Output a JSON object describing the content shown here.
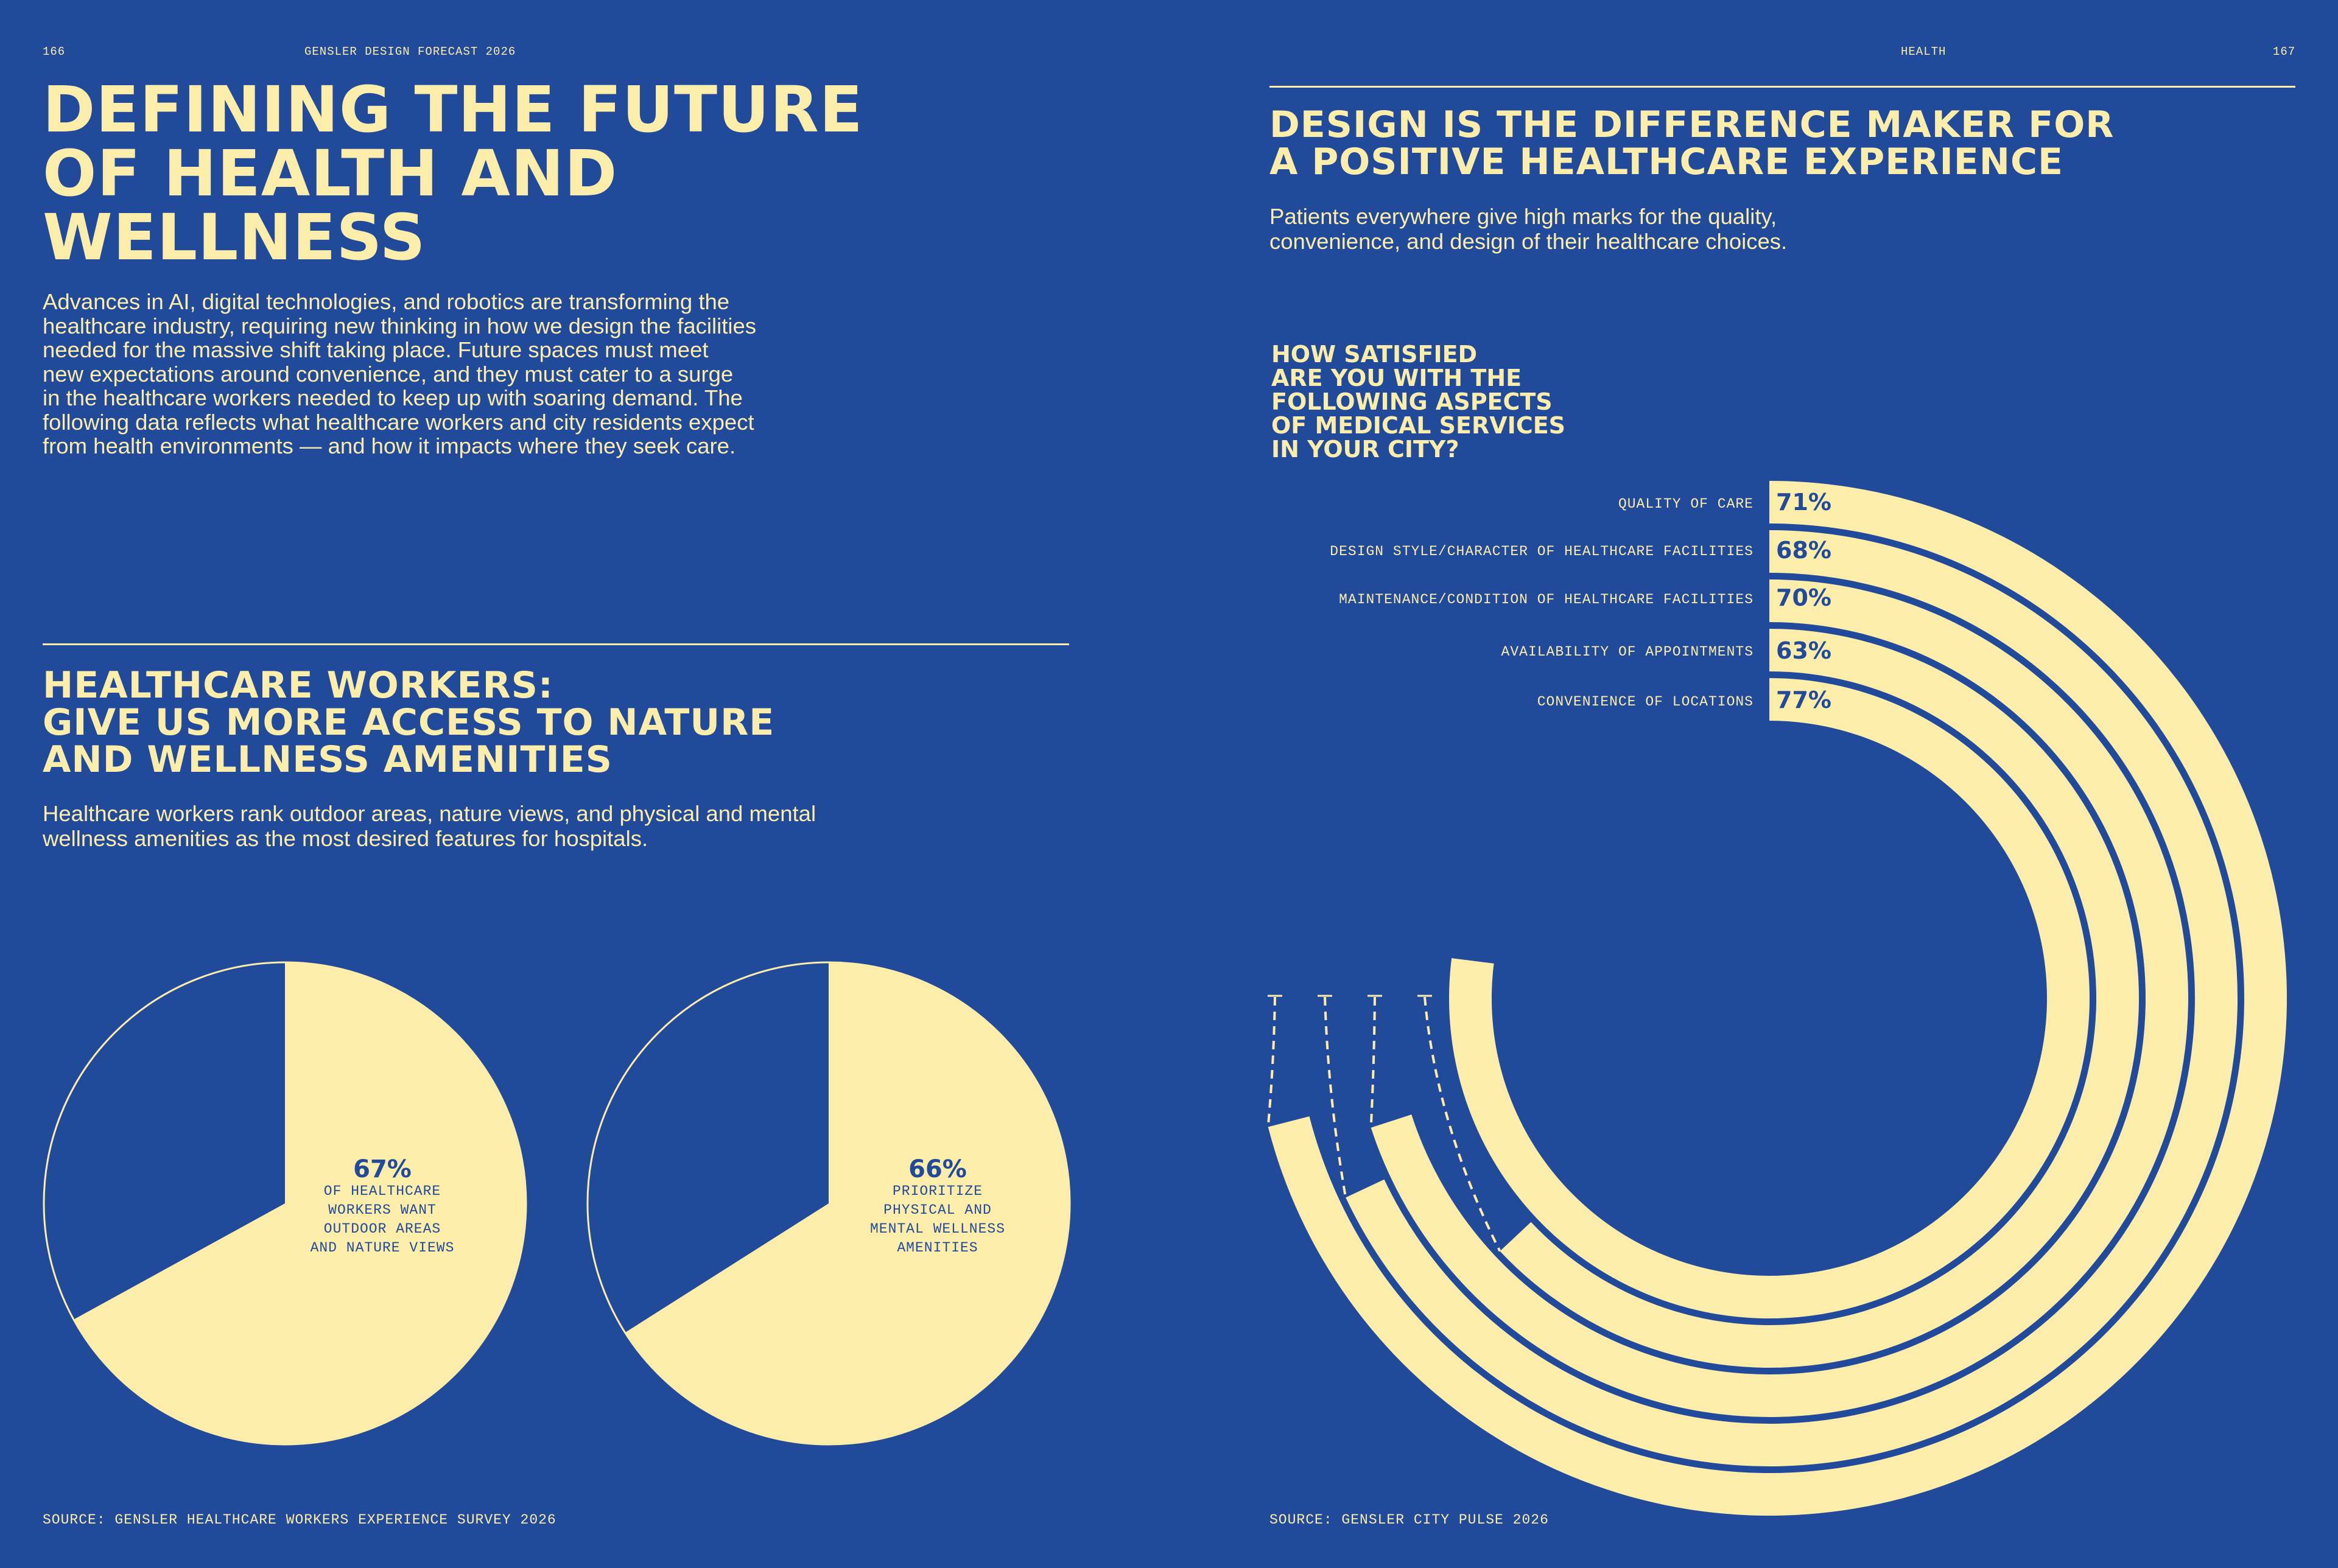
{
  "left_page": {
    "page_number": "166",
    "running_head": "GENSLER DESIGN FORECAST 2026",
    "title_lines": [
      "DEFINING THE FUTURE",
      "OF HEALTH AND",
      "WELLNESS"
    ],
    "intro_lines": [
      "Advances in AI, digital technologies, and robotics are transforming the",
      "healthcare industry, requiring new thinking in how we design the facilities",
      "needed for the massive shift taking place. Future spaces must meet",
      "new expectations around convenience, and they must cater to a surge",
      "in the healthcare workers needed to keep up with soaring demand. The",
      "following data reflects what healthcare workers and city residents expect",
      "from health environments — and how it impacts where they seek care."
    ],
    "section_title_lines": [
      "HEALTHCARE WORKERS:",
      "GIVE US MORE ACCESS TO NATURE",
      "AND WELLNESS AMENITIES"
    ],
    "section_body_lines": [
      "Healthcare workers rank outdoor areas, nature views, and physical and mental",
      "wellness amenities as the most desired features for hospitals."
    ],
    "source": "SOURCE: GENSLER HEALTHCARE WORKERS EXPERIENCE SURVEY 2026"
  },
  "right_page": {
    "running_head": "HEALTH",
    "page_number": "167",
    "title_lines": [
      "DESIGN IS THE DIFFERENCE MAKER FOR",
      "A POSITIVE HEALTHCARE EXPERIENCE"
    ],
    "subtitle_lines": [
      "Patients everywhere give high marks for the quality,",
      "convenience, and design of their healthcare choices."
    ],
    "question_lines": [
      "HOW SATISFIED",
      "ARE YOU WITH THE",
      "FOLLOWING ASPECTS",
      "OF MEDICAL SERVICES",
      "IN YOUR CITY?"
    ],
    "source": "SOURCE: GENSLER CITY PULSE 2026"
  },
  "colors": {
    "background": "#214a9b",
    "accent": "#fcedab"
  },
  "chart_data": [
    {
      "type": "pie",
      "title": "Healthcare workers want outdoor areas and nature views",
      "value_label": "67%",
      "caption_lines": [
        "OF HEALTHCARE",
        "WORKERS WANT",
        "OUTDOOR AREAS",
        "AND NATURE VIEWS"
      ],
      "slices": [
        {
          "name": "Want outdoor areas and nature views",
          "value": 67
        },
        {
          "name": "Other",
          "value": 33
        }
      ]
    },
    {
      "type": "pie",
      "title": "Prioritize physical and mental wellness amenities",
      "value_label": "66%",
      "caption_lines": [
        "PRIORITIZE",
        "PHYSICAL AND",
        "MENTAL WELLNESS",
        "AMENITIES"
      ],
      "slices": [
        {
          "name": "Prioritize physical and mental wellness amenities",
          "value": 66
        },
        {
          "name": "Other",
          "value": 34
        }
      ]
    },
    {
      "type": "radial-bar",
      "title": "How satisfied are you with the following aspects of medical services in your city?",
      "max": 100,
      "categories": [
        "QUALITY OF CARE",
        "DESIGN STYLE/CHARACTER OF HEALTHCARE FACILITIES",
        "MAINTENANCE/CONDITION OF HEALTHCARE FACILITIES",
        "AVAILABILITY OF APPOINTMENTS",
        "CONVENIENCE OF LOCATIONS"
      ],
      "values": [
        71,
        68,
        70,
        63,
        77
      ],
      "value_labels": [
        "71%",
        "68%",
        "70%",
        "63%",
        "77%"
      ]
    }
  ]
}
